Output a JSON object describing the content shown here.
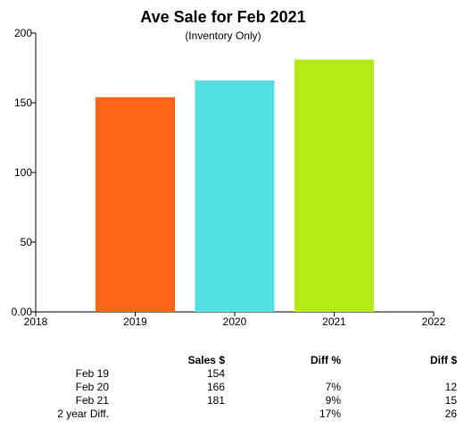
{
  "chart_data": {
    "type": "bar",
    "title": "Ave Sale for Feb 2021",
    "subtitle": "(Inventory Only)",
    "categories": [
      "2019",
      "2020",
      "2021"
    ],
    "values": [
      154,
      166,
      181
    ],
    "colors": [
      "#ff6418",
      "#50e0e0",
      "#b4e817"
    ],
    "x_ticks": [
      "2018",
      "2019",
      "2020",
      "2021",
      "2022"
    ],
    "x_range": [
      2018,
      2022
    ],
    "y_ticks": [
      "0.00",
      "50",
      "100",
      "150",
      "200"
    ],
    "ylim": [
      0,
      200
    ],
    "grid": false,
    "legend": "none"
  },
  "summary": {
    "headers": {
      "sales": "Sales $",
      "diff_pct": "Diff %",
      "diff_usd": "Diff $"
    },
    "rows": [
      {
        "label": "Feb 19",
        "sales": "154",
        "diff_pct": "",
        "diff_usd": ""
      },
      {
        "label": "Feb 20",
        "sales": "166",
        "diff_pct": "7%",
        "diff_usd": "12"
      },
      {
        "label": "Feb 21",
        "sales": "181",
        "diff_pct": "9%",
        "diff_usd": "15"
      },
      {
        "label": "2 year Diff.",
        "sales": "",
        "diff_pct": "17%",
        "diff_usd": "26"
      }
    ]
  }
}
